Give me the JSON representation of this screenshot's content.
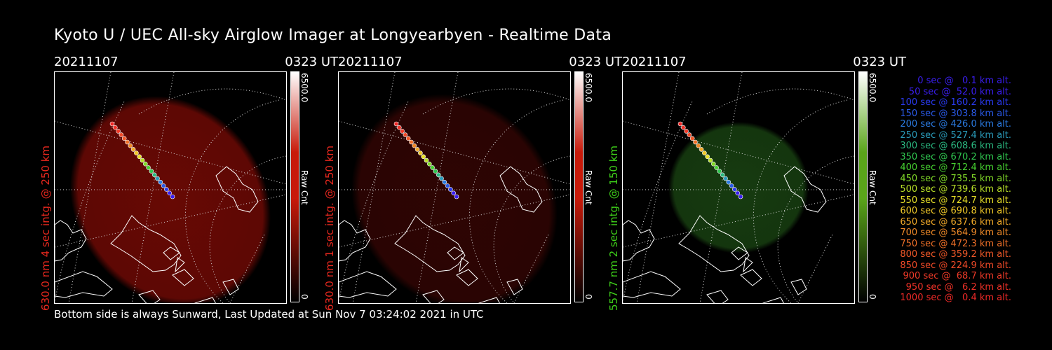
{
  "title": "Kyoto U / UEC All-sky Airglow Imager at Longyearbyen - Realtime Data",
  "footer": "Bottom side is always Sunward, Last Updated at Sun Nov  7 03:24:02 2021 in UTC",
  "panels": [
    {
      "date": "20211107",
      "time": "0323 UT",
      "label": "630.0 nm 4 sec intg. @ 250 km",
      "label_color": "#e8281e",
      "colorbar_max": "6500.0",
      "colorbar_unit": "Raw Cnt",
      "colorbar_min": "0",
      "colorbar_color": "#c81a0a",
      "glow_color": "#8a0c06",
      "glow_opacity": 0.75
    },
    {
      "date": "20211107",
      "time": "0323 UT",
      "label": "630.0 nm 1 sec intg. @ 250 km",
      "label_color": "#e8281e",
      "colorbar_max": "6500.0",
      "colorbar_unit": "Raw Cnt",
      "colorbar_min": "0",
      "colorbar_color": "#c81a0a",
      "glow_color": "#3a0604",
      "glow_opacity": 0.8
    },
    {
      "date": "20211107",
      "time": "0323 UT",
      "label": "557.7 nm 2 sec intg. @ 150 km",
      "label_color": "#3fd21a",
      "colorbar_max": "6500.0",
      "colorbar_unit": "Raw Cnt",
      "colorbar_min": "0",
      "colorbar_color": "#5aa51a",
      "glow_color": "#1c4a14",
      "glow_opacity": 0.8
    }
  ],
  "legend": [
    {
      "text": "0 sec @   0.1 km alt.",
      "color": "#3a1ef0"
    },
    {
      "text": "50 sec @  52.0 km alt.",
      "color": "#3a1ef0"
    },
    {
      "text": "100 sec @ 160.2 km alt.",
      "color": "#2a3af0"
    },
    {
      "text": "150 sec @ 303.8 km alt.",
      "color": "#2a5ae8"
    },
    {
      "text": "200 sec @ 426.0 km alt.",
      "color": "#2a7ae0"
    },
    {
      "text": "250 sec @ 527.4 km alt.",
      "color": "#2a9ab8"
    },
    {
      "text": "300 sec @ 608.6 km alt.",
      "color": "#2ab880"
    },
    {
      "text": "350 sec @ 670.2 km alt.",
      "color": "#30c850"
    },
    {
      "text": "400 sec @ 712.4 km alt.",
      "color": "#46d030"
    },
    {
      "text": "450 sec @ 735.5 km alt.",
      "color": "#80d828"
    },
    {
      "text": "500 sec @ 739.6 km alt.",
      "color": "#b8e028"
    },
    {
      "text": "550 sec @ 724.7 km alt.",
      "color": "#e8e028"
    },
    {
      "text": "600 sec @ 690.8 km alt.",
      "color": "#f0c828"
    },
    {
      "text": "650 sec @ 637.6 km alt.",
      "color": "#f0a828"
    },
    {
      "text": "700 sec @ 564.9 km alt.",
      "color": "#f08a28"
    },
    {
      "text": "750 sec @ 472.3 km alt.",
      "color": "#f07028"
    },
    {
      "text": "800 sec @ 359.2 km alt.",
      "color": "#f05828"
    },
    {
      "text": "850 sec @ 224.9 km alt.",
      "color": "#f04a28"
    },
    {
      "text": "900 sec @  68.7 km alt.",
      "color": "#f03a28"
    },
    {
      "text": "950 sec @   6.2 km alt.",
      "color": "#f03228"
    },
    {
      "text": "1000 sec @   0.4 km alt.",
      "color": "#f02a28"
    }
  ]
}
